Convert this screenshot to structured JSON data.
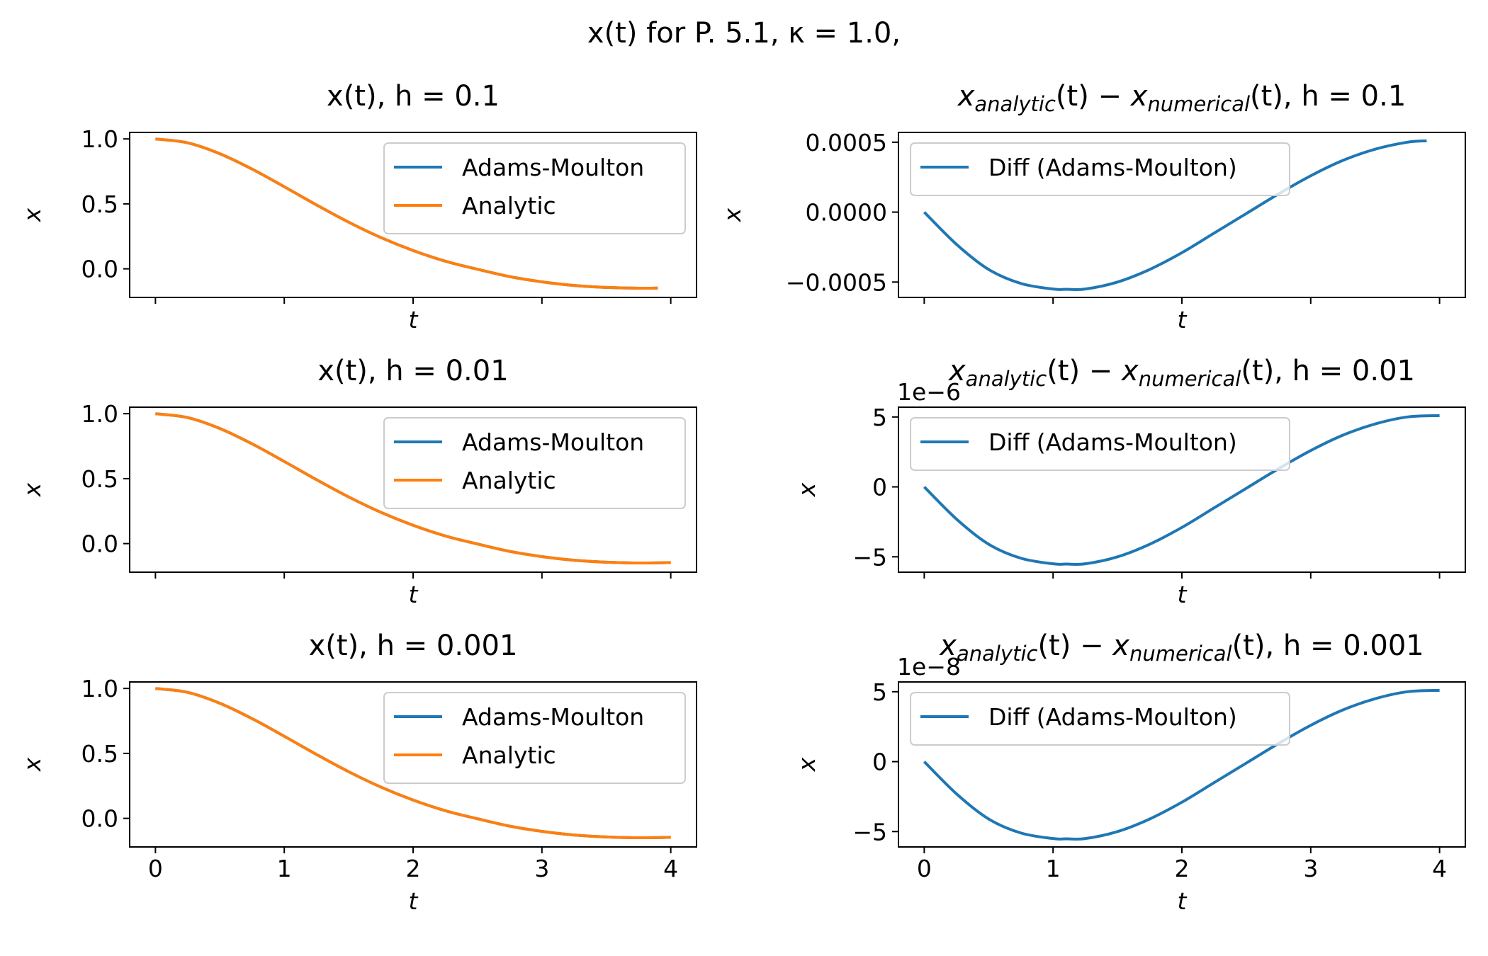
{
  "figure": {
    "suptitle": "x(t) for P. 5.1, κ = 1.0,"
  },
  "colors": {
    "adams_moulton": "#1f77b4",
    "analytic": "#ff7f0e",
    "axes": "#000000",
    "legend_frame": "#cccccc"
  },
  "chart_data": [
    {
      "type": "line",
      "title": "x(t), h = 0.1",
      "xlabel": "t",
      "ylabel": "x",
      "xlim": [
        -0.2,
        4.2
      ],
      "ylim": [
        -0.22,
        1.05
      ],
      "xticks": [
        0,
        1,
        2,
        3,
        4
      ],
      "xticklabels": [],
      "yticks": [
        1.0,
        0.5,
        0.0
      ],
      "yticklabels": [
        "1.0",
        "0.5",
        "0.0"
      ],
      "legend": "upper right",
      "series": [
        {
          "name": "Adams-Moulton",
          "color": "#1f77b4",
          "x": [
            0,
            0.25,
            0.5,
            0.75,
            1.0,
            1.25,
            1.5,
            1.75,
            2.0,
            2.25,
            2.5,
            2.75,
            3.0,
            3.25,
            3.5,
            3.75,
            3.9
          ],
          "y": [
            1.0,
            0.97,
            0.886,
            0.768,
            0.632,
            0.492,
            0.359,
            0.241,
            0.141,
            0.059,
            -0.003,
            -0.06,
            -0.1,
            -0.128,
            -0.143,
            -0.149,
            -0.148
          ]
        },
        {
          "name": "Analytic",
          "color": "#ff7f0e",
          "x": [
            0,
            0.25,
            0.5,
            0.75,
            1.0,
            1.25,
            1.5,
            1.75,
            2.0,
            2.25,
            2.5,
            2.75,
            3.0,
            3.25,
            3.5,
            3.75,
            3.9
          ],
          "y": [
            1.0,
            0.97,
            0.886,
            0.768,
            0.632,
            0.492,
            0.359,
            0.241,
            0.141,
            0.059,
            -0.003,
            -0.06,
            -0.1,
            -0.128,
            -0.143,
            -0.149,
            -0.148
          ]
        }
      ]
    },
    {
      "type": "line",
      "title": "x_analytic(t) − x_numerical(t), h = 0.1",
      "title_parts": [
        "x",
        "analytic",
        "(t) − ",
        "x",
        "numerical",
        "(t), h = 0.1"
      ],
      "xlabel": "t",
      "ylabel": "x",
      "xlim": [
        -0.2,
        4.2
      ],
      "ylim": [
        -0.00061,
        0.00057
      ],
      "xticks": [
        0,
        1,
        2,
        3,
        4
      ],
      "xticklabels": [],
      "yticks": [
        0.0005,
        0.0,
        -0.0005
      ],
      "yticklabels": [
        "0.0005",
        "0.0000",
        "−0.0005"
      ],
      "offset_text": "",
      "legend": "upper left",
      "series": [
        {
          "name": "Diff (Adams-Moulton)",
          "color": "#1f77b4",
          "x": [
            0,
            0.25,
            0.5,
            0.75,
            1.0,
            1.1,
            1.25,
            1.5,
            1.75,
            2.0,
            2.25,
            2.5,
            2.75,
            3.0,
            3.25,
            3.5,
            3.75,
            3.9
          ],
          "y": [
            0.0,
            -0.00023,
            -0.00041,
            -0.00051,
            -0.00055,
            -0.000552,
            -0.00055,
            -0.0005,
            -0.00041,
            -0.00029,
            -0.00015,
            -1e-05,
            0.00013,
            0.00026,
            0.00037,
            0.00045,
            0.0005,
            0.00051
          ]
        }
      ]
    },
    {
      "type": "line",
      "title": "x(t), h = 0.01",
      "xlabel": "t",
      "ylabel": "x",
      "xlim": [
        -0.2,
        4.2
      ],
      "ylim": [
        -0.22,
        1.05
      ],
      "xticks": [
        0,
        1,
        2,
        3,
        4
      ],
      "xticklabels": [],
      "yticks": [
        1.0,
        0.5,
        0.0
      ],
      "yticklabels": [
        "1.0",
        "0.5",
        "0.0"
      ],
      "legend": "upper right",
      "series": [
        {
          "name": "Adams-Moulton",
          "color": "#1f77b4",
          "x": [
            0,
            0.25,
            0.5,
            0.75,
            1.0,
            1.25,
            1.5,
            1.75,
            2.0,
            2.25,
            2.5,
            2.75,
            3.0,
            3.25,
            3.5,
            3.75,
            4.0
          ],
          "y": [
            1.0,
            0.97,
            0.886,
            0.768,
            0.632,
            0.492,
            0.359,
            0.241,
            0.141,
            0.059,
            -0.003,
            -0.06,
            -0.1,
            -0.128,
            -0.143,
            -0.149,
            -0.146
          ]
        },
        {
          "name": "Analytic",
          "color": "#ff7f0e",
          "x": [
            0,
            0.25,
            0.5,
            0.75,
            1.0,
            1.25,
            1.5,
            1.75,
            2.0,
            2.25,
            2.5,
            2.75,
            3.0,
            3.25,
            3.5,
            3.75,
            4.0
          ],
          "y": [
            1.0,
            0.97,
            0.886,
            0.768,
            0.632,
            0.492,
            0.359,
            0.241,
            0.141,
            0.059,
            -0.003,
            -0.06,
            -0.1,
            -0.128,
            -0.143,
            -0.149,
            -0.146
          ]
        }
      ]
    },
    {
      "type": "line",
      "title": "x_analytic(t) − x_numerical(t), h = 0.01",
      "title_parts": [
        "x",
        "analytic",
        "(t) − ",
        "x",
        "numerical",
        "(t), h = 0.01"
      ],
      "xlabel": "t",
      "ylabel": "x",
      "xlim": [
        -0.2,
        4.2
      ],
      "ylim": [
        -6.1,
        5.7
      ],
      "xticks": [
        0,
        1,
        2,
        3,
        4
      ],
      "xticklabels": [],
      "yticks": [
        5,
        0,
        -5
      ],
      "yticklabels": [
        "5",
        "0",
        "−5"
      ],
      "offset_text": "1e−6",
      "legend": "upper left",
      "series": [
        {
          "name": "Diff (Adams-Moulton)",
          "color": "#1f77b4",
          "x": [
            0,
            0.25,
            0.5,
            0.75,
            1.0,
            1.1,
            1.25,
            1.5,
            1.75,
            2.0,
            2.25,
            2.5,
            2.75,
            3.0,
            3.25,
            3.5,
            3.75,
            4.0
          ],
          "y": [
            0.0,
            -2.3,
            -4.1,
            -5.1,
            -5.5,
            -5.52,
            -5.5,
            -5.0,
            -4.1,
            -2.9,
            -1.5,
            -0.1,
            1.3,
            2.6,
            3.7,
            4.5,
            5.0,
            5.1
          ]
        }
      ]
    },
    {
      "type": "line",
      "title": "x(t), h = 0.001",
      "xlabel": "t",
      "ylabel": "x",
      "xlim": [
        -0.2,
        4.2
      ],
      "ylim": [
        -0.22,
        1.05
      ],
      "xticks": [
        0,
        1,
        2,
        3,
        4
      ],
      "xticklabels": [
        "0",
        "1",
        "2",
        "3",
        "4"
      ],
      "yticks": [
        1.0,
        0.5,
        0.0
      ],
      "yticklabels": [
        "1.0",
        "0.5",
        "0.0"
      ],
      "legend": "upper right",
      "series": [
        {
          "name": "Adams-Moulton",
          "color": "#1f77b4",
          "x": [
            0,
            0.25,
            0.5,
            0.75,
            1.0,
            1.25,
            1.5,
            1.75,
            2.0,
            2.25,
            2.5,
            2.75,
            3.0,
            3.25,
            3.5,
            3.75,
            4.0
          ],
          "y": [
            1.0,
            0.97,
            0.886,
            0.768,
            0.632,
            0.492,
            0.359,
            0.241,
            0.141,
            0.059,
            -0.003,
            -0.06,
            -0.1,
            -0.128,
            -0.143,
            -0.149,
            -0.146
          ]
        },
        {
          "name": "Analytic",
          "color": "#ff7f0e",
          "x": [
            0,
            0.25,
            0.5,
            0.75,
            1.0,
            1.25,
            1.5,
            1.75,
            2.0,
            2.25,
            2.5,
            2.75,
            3.0,
            3.25,
            3.5,
            3.75,
            4.0
          ],
          "y": [
            1.0,
            0.97,
            0.886,
            0.768,
            0.632,
            0.492,
            0.359,
            0.241,
            0.141,
            0.059,
            -0.003,
            -0.06,
            -0.1,
            -0.128,
            -0.143,
            -0.149,
            -0.146
          ]
        }
      ]
    },
    {
      "type": "line",
      "title": "x_analytic(t) − x_numerical(t), h = 0.001",
      "title_parts": [
        "x",
        "analytic",
        "(t) − ",
        "x",
        "numerical",
        "(t), h = 0.001"
      ],
      "xlabel": "t",
      "ylabel": "x",
      "xlim": [
        -0.2,
        4.2
      ],
      "ylim": [
        -6.1,
        5.7
      ],
      "xticks": [
        0,
        1,
        2,
        3,
        4
      ],
      "xticklabels": [
        "0",
        "1",
        "2",
        "3",
        "4"
      ],
      "yticks": [
        5,
        0,
        -5
      ],
      "yticklabels": [
        "5",
        "0",
        "−5"
      ],
      "offset_text": "1e−8",
      "legend": "upper left",
      "series": [
        {
          "name": "Diff (Adams-Moulton)",
          "color": "#1f77b4",
          "x": [
            0,
            0.25,
            0.5,
            0.75,
            1.0,
            1.1,
            1.25,
            1.5,
            1.75,
            2.0,
            2.25,
            2.5,
            2.75,
            3.0,
            3.25,
            3.5,
            3.75,
            4.0
          ],
          "y": [
            0.0,
            -2.3,
            -4.1,
            -5.1,
            -5.5,
            -5.52,
            -5.5,
            -5.0,
            -4.1,
            -2.9,
            -1.5,
            -0.1,
            1.3,
            2.6,
            3.7,
            4.5,
            5.0,
            5.1
          ]
        }
      ]
    }
  ]
}
